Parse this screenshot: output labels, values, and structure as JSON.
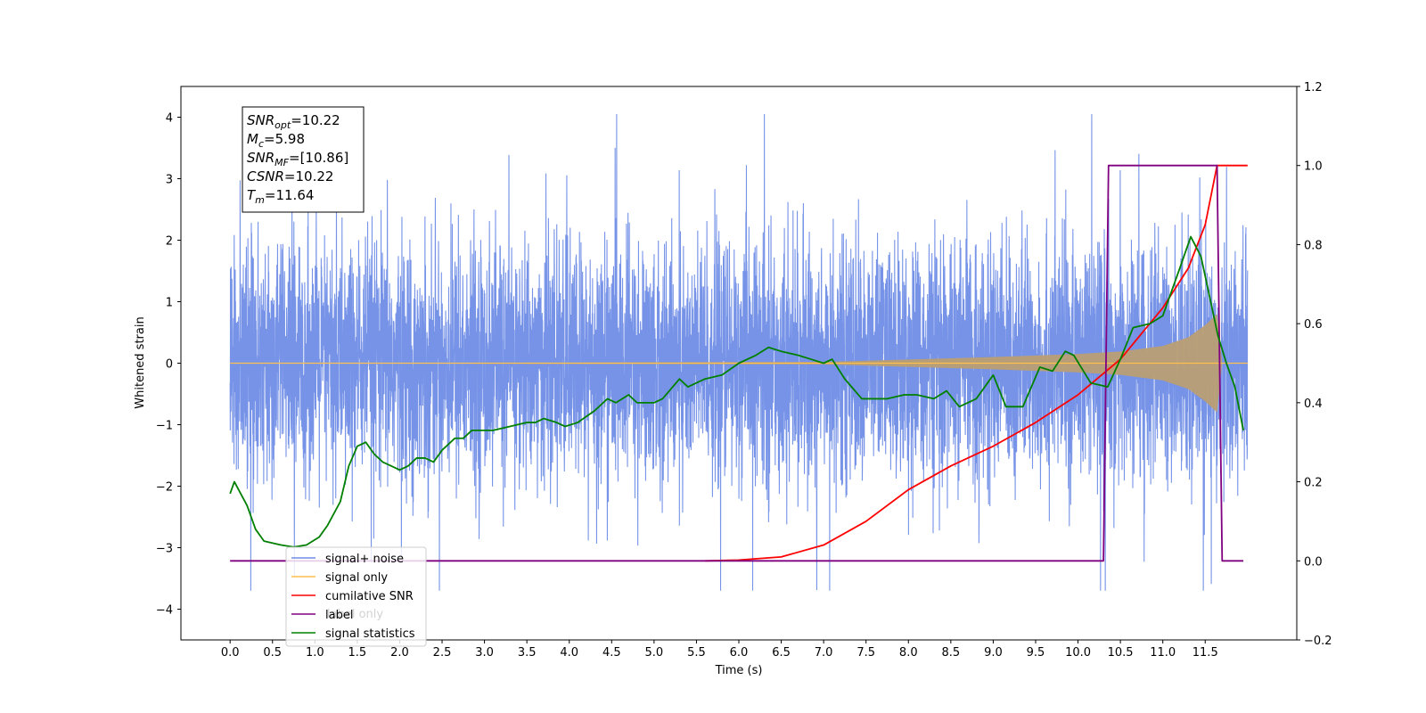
{
  "chart_data": {
    "type": "line",
    "title": "",
    "xlabel": "Time (s)",
    "ylabel": "Whitened strain",
    "y2label": "",
    "xlim": [
      -0.58,
      12.58
    ],
    "ylim": [
      -4.5,
      4.5
    ],
    "y2lim": [
      -0.2,
      1.2
    ],
    "xticks": [
      "0.0",
      "0.5",
      "1.0",
      "1.5",
      "2.0",
      "2.5",
      "3.0",
      "3.5",
      "4.0",
      "4.5",
      "5.0",
      "5.5",
      "6.0",
      "6.5",
      "7.0",
      "7.5",
      "8.0",
      "8.5",
      "9.0",
      "9.5",
      "10.0",
      "10.5",
      "11.0",
      "11.5"
    ],
    "yticks": [
      "−4",
      "−3",
      "−2",
      "−1",
      "0",
      "1",
      "2",
      "3",
      "4"
    ],
    "y2ticks": [
      "−0.2",
      "0.0",
      "0.2",
      "0.4",
      "0.6",
      "0.8",
      "1.0",
      "1.2"
    ],
    "grid": false,
    "legend_position": "lower-left",
    "stats_box": {
      "lines": [
        {
          "name": "SNR",
          "sub": "opt",
          "value": "=10.22"
        },
        {
          "name": "M",
          "sub": "c",
          "value": "=5.98"
        },
        {
          "name": "SNR",
          "sub": "MF",
          "value": "=[10.86]"
        },
        {
          "name": "CSNR",
          "sub": "",
          "value": "=10.22"
        },
        {
          "name": "T",
          "sub": "m",
          "value": "=11.64"
        }
      ]
    },
    "legend": [
      {
        "label": "signal+ noise",
        "color": "#6f8de6"
      },
      {
        "label": "signal only",
        "color": "#ffc04d"
      },
      {
        "label": "cumilative SNR",
        "color": "#ff0000"
      },
      {
        "label": "label",
        "color": "#800080"
      },
      {
        "label": "signal statistics",
        "color": "#008000"
      }
    ],
    "legend_ghost_text": "label only",
    "series": [
      {
        "name": "signal+ noise",
        "axis": "left",
        "color": "#6f8de6",
        "kind": "noise",
        "t_start": 0.0,
        "t_end": 12.0,
        "sigma": 1.0,
        "range": [
          -3.7,
          4.05
        ]
      },
      {
        "name": "signal only",
        "axis": "left",
        "color": "#ffc04d",
        "kind": "chirp_envelope",
        "t_start": 0.0,
        "t_end": 12.0,
        "envelope_t": [
          0.0,
          7.0,
          8.0,
          9.0,
          10.0,
          10.5,
          11.0,
          11.3,
          11.5,
          11.64,
          11.7,
          12.0
        ],
        "envelope_amp": [
          0.0,
          0.02,
          0.06,
          0.1,
          0.15,
          0.19,
          0.28,
          0.42,
          0.62,
          0.8,
          0.0,
          0.0
        ]
      },
      {
        "name": "cumilative SNR",
        "axis": "right",
        "color": "#ff0000",
        "x": [
          5.6,
          6.0,
          6.5,
          7.0,
          7.5,
          8.0,
          8.5,
          9.0,
          9.5,
          10.0,
          10.5,
          11.0,
          11.3,
          11.5,
          11.64,
          12.0
        ],
        "y": [
          0.0,
          0.002,
          0.01,
          0.04,
          0.1,
          0.18,
          0.24,
          0.29,
          0.35,
          0.42,
          0.51,
          0.64,
          0.74,
          0.85,
          1.0,
          1.0
        ]
      },
      {
        "name": "label",
        "axis": "right",
        "color": "#800080",
        "x": [
          0.0,
          10.3,
          10.36,
          11.64,
          11.7,
          11.95
        ],
        "y": [
          0.0,
          0.0,
          1.0,
          1.0,
          0.0,
          0.0
        ]
      },
      {
        "name": "signal statistics",
        "axis": "right",
        "color": "#008000",
        "x": [
          0.0,
          0.05,
          0.2,
          0.3,
          0.4,
          0.6,
          0.75,
          0.9,
          1.05,
          1.15,
          1.3,
          1.4,
          1.5,
          1.6,
          1.7,
          1.8,
          1.9,
          2.0,
          2.1,
          2.2,
          2.3,
          2.4,
          2.5,
          2.65,
          2.75,
          2.85,
          3.0,
          3.1,
          3.3,
          3.5,
          3.6,
          3.7,
          3.85,
          3.95,
          4.1,
          4.3,
          4.45,
          4.55,
          4.7,
          4.8,
          5.0,
          5.1,
          5.3,
          5.4,
          5.6,
          5.8,
          6.0,
          6.2,
          6.35,
          6.5,
          6.7,
          6.85,
          7.0,
          7.1,
          7.25,
          7.45,
          7.6,
          7.75,
          7.95,
          8.1,
          8.3,
          8.45,
          8.6,
          8.8,
          9.0,
          9.15,
          9.35,
          9.55,
          9.7,
          9.85,
          9.95,
          10.15,
          10.35,
          10.5,
          10.65,
          10.85,
          11.0,
          11.2,
          11.33,
          11.45,
          11.55,
          11.65,
          11.75,
          11.85,
          11.95
        ],
        "y": [
          0.17,
          0.2,
          0.14,
          0.08,
          0.05,
          0.04,
          0.035,
          0.04,
          0.06,
          0.09,
          0.15,
          0.24,
          0.29,
          0.3,
          0.27,
          0.25,
          0.24,
          0.23,
          0.24,
          0.26,
          0.26,
          0.25,
          0.28,
          0.31,
          0.31,
          0.33,
          0.33,
          0.33,
          0.34,
          0.35,
          0.35,
          0.36,
          0.35,
          0.34,
          0.35,
          0.38,
          0.41,
          0.4,
          0.42,
          0.4,
          0.4,
          0.41,
          0.46,
          0.44,
          0.46,
          0.47,
          0.5,
          0.52,
          0.54,
          0.53,
          0.52,
          0.51,
          0.5,
          0.51,
          0.46,
          0.41,
          0.41,
          0.41,
          0.42,
          0.42,
          0.41,
          0.43,
          0.39,
          0.41,
          0.47,
          0.39,
          0.39,
          0.49,
          0.48,
          0.53,
          0.52,
          0.45,
          0.44,
          0.51,
          0.59,
          0.6,
          0.62,
          0.74,
          0.82,
          0.77,
          0.67,
          0.57,
          0.5,
          0.44,
          0.33
        ]
      }
    ]
  }
}
